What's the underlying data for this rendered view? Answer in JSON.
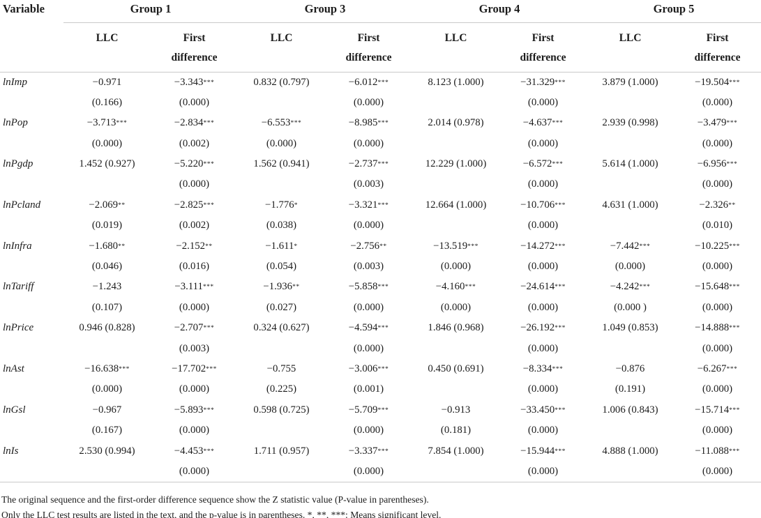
{
  "table": {
    "variable_header": "Variable",
    "groups": [
      {
        "label": "Group 1"
      },
      {
        "label": "Group 3"
      },
      {
        "label": "Group 4"
      },
      {
        "label": "Group 5"
      }
    ],
    "sub_headers": [
      "LLC",
      "First difference"
    ],
    "rows": [
      {
        "variable": "lnImp",
        "cells": [
          {
            "line1": "−0.971",
            "line2": "(0.166)"
          },
          {
            "line1": "−3.343***",
            "line2": "(0.000)"
          },
          {
            "line1": "0.832 (0.797)",
            "line2": ""
          },
          {
            "line1": "−6.012***",
            "line2": "(0.000)"
          },
          {
            "line1": "8.123 (1.000)",
            "line2": ""
          },
          {
            "line1": "−31.329***",
            "line2": "(0.000)"
          },
          {
            "line1": "3.879 (1.000)",
            "line2": ""
          },
          {
            "line1": "−19.504***",
            "line2": "(0.000)"
          }
        ]
      },
      {
        "variable": "lnPop",
        "cells": [
          {
            "line1": "−3.713***",
            "line2": "(0.000)"
          },
          {
            "line1": "−2.834***",
            "line2": "(0.002)"
          },
          {
            "line1": "−6.553***",
            "line2": "(0.000)"
          },
          {
            "line1": "−8.985***",
            "line2": "(0.000)"
          },
          {
            "line1": "2.014 (0.978)",
            "line2": ""
          },
          {
            "line1": "−4.637***",
            "line2": "(0.000)"
          },
          {
            "line1": "2.939 (0.998)",
            "line2": ""
          },
          {
            "line1": "−3.479***",
            "line2": "(0.000)"
          }
        ]
      },
      {
        "variable": "lnPgdp",
        "cells": [
          {
            "line1": "1.452 (0.927)",
            "line2": ""
          },
          {
            "line1": "−5.220***",
            "line2": "(0.000)"
          },
          {
            "line1": "1.562 (0.941)",
            "line2": ""
          },
          {
            "line1": "−2.737***",
            "line2": "(0.003)"
          },
          {
            "line1": "12.229 (1.000)",
            "line2": ""
          },
          {
            "line1": "−6.572***",
            "line2": "(0.000)"
          },
          {
            "line1": "5.614 (1.000)",
            "line2": ""
          },
          {
            "line1": "−6.956***",
            "line2": "(0.000)"
          }
        ]
      },
      {
        "variable": "lnPcland",
        "cells": [
          {
            "line1": "−2.069**",
            "line2": "(0.019)"
          },
          {
            "line1": "−2.825***",
            "line2": "(0.002)"
          },
          {
            "line1": "−1.776*",
            "line2": "(0.038)"
          },
          {
            "line1": "−3.321***",
            "line2": "(0.000)"
          },
          {
            "line1": "12.664 (1.000)",
            "line2": ""
          },
          {
            "line1": "−10.706***",
            "line2": "(0.000)"
          },
          {
            "line1": "4.631 (1.000)",
            "line2": ""
          },
          {
            "line1": "−2.326**",
            "line2": "(0.010)"
          }
        ]
      },
      {
        "variable": "lnInfra",
        "cells": [
          {
            "line1": "−1.680**",
            "line2": "(0.046)"
          },
          {
            "line1": "−2.152**",
            "line2": "(0.016)"
          },
          {
            "line1": "−1.611*",
            "line2": "(0.054)"
          },
          {
            "line1": "−2.756**",
            "line2": "(0.003)"
          },
          {
            "line1": "−13.519***",
            "line2": "(0.000)"
          },
          {
            "line1": "−14.272***",
            "line2": "(0.000)"
          },
          {
            "line1": "−7.442***",
            "line2": "(0.000)"
          },
          {
            "line1": "−10.225***",
            "line2": "(0.000)"
          }
        ]
      },
      {
        "variable": "lnTariff",
        "cells": [
          {
            "line1": "−1.243",
            "line2": "(0.107)"
          },
          {
            "line1": "−3.111***",
            "line2": "(0.000)"
          },
          {
            "line1": "−1.936**",
            "line2": "(0.027)"
          },
          {
            "line1": "−5.858***",
            "line2": "(0.000)"
          },
          {
            "line1": "−4.160***",
            "line2": "(0.000)"
          },
          {
            "line1": "−24.614***",
            "line2": "(0.000)"
          },
          {
            "line1": "−4.242***",
            "line2": "(0.000 )"
          },
          {
            "line1": "−15.648***",
            "line2": "(0.000)"
          }
        ]
      },
      {
        "variable": "lnPrice",
        "cells": [
          {
            "line1": "0.946 (0.828)",
            "line2": ""
          },
          {
            "line1": "−2.707***",
            "line2": "(0.003)"
          },
          {
            "line1": "0.324 (0.627)",
            "line2": ""
          },
          {
            "line1": "−4.594***",
            "line2": "(0.000)"
          },
          {
            "line1": "1.846 (0.968)",
            "line2": ""
          },
          {
            "line1": "−26.192***",
            "line2": "(0.000)"
          },
          {
            "line1": "1.049 (0.853)",
            "line2": ""
          },
          {
            "line1": "−14.888***",
            "line2": "(0.000)"
          }
        ]
      },
      {
        "variable": "lnAst",
        "cells": [
          {
            "line1": "−16.638***",
            "line2": "(0.000)"
          },
          {
            "line1": "−17.702***",
            "line2": "(0.000)"
          },
          {
            "line1": "−0.755",
            "line2": "(0.225)"
          },
          {
            "line1": "−3.006***",
            "line2": "(0.001)"
          },
          {
            "line1": "0.450 (0.691)",
            "line2": ""
          },
          {
            "line1": "−8.334***",
            "line2": "(0.000)"
          },
          {
            "line1": "−0.876",
            "line2": "(0.191)"
          },
          {
            "line1": "−6.267***",
            "line2": "(0.000)"
          }
        ]
      },
      {
        "variable": "lnGsl",
        "cells": [
          {
            "line1": "−0.967",
            "line2": "(0.167)"
          },
          {
            "line1": "−5.893***",
            "line2": "(0.000)"
          },
          {
            "line1": "0.598 (0.725)",
            "line2": ""
          },
          {
            "line1": "−5.709***",
            "line2": "(0.000)"
          },
          {
            "line1": "−0.913",
            "line2": "(0.181)"
          },
          {
            "line1": "−33.450***",
            "line2": "(0.000)"
          },
          {
            "line1": "1.006 (0.843)",
            "line2": ""
          },
          {
            "line1": "−15.714***",
            "line2": "(0.000)"
          }
        ]
      },
      {
        "variable": "lnIs",
        "cells": [
          {
            "line1": "2.530 (0.994)",
            "line2": ""
          },
          {
            "line1": "−4.453***",
            "line2": "(0.000)"
          },
          {
            "line1": "1.711 (0.957)",
            "line2": ""
          },
          {
            "line1": "−3.337***",
            "line2": "(0.000)"
          },
          {
            "line1": "7.854 (1.000)",
            "line2": ""
          },
          {
            "line1": "−15.944***",
            "line2": "(0.000)"
          },
          {
            "line1": "4.888 (1.000)",
            "line2": ""
          },
          {
            "line1": "−11.088***",
            "line2": "(0.000)"
          }
        ]
      }
    ],
    "notes": [
      "The original sequence and the first-order difference sequence show the Z statistic value (P-value in parentheses).",
      "Only the LLC test results are listed in the text, and the p-value is in parentheses. *, **, ***: Means significant level."
    ],
    "rule_color": "#c9c9c9",
    "text_color": "#1c1c1c"
  }
}
